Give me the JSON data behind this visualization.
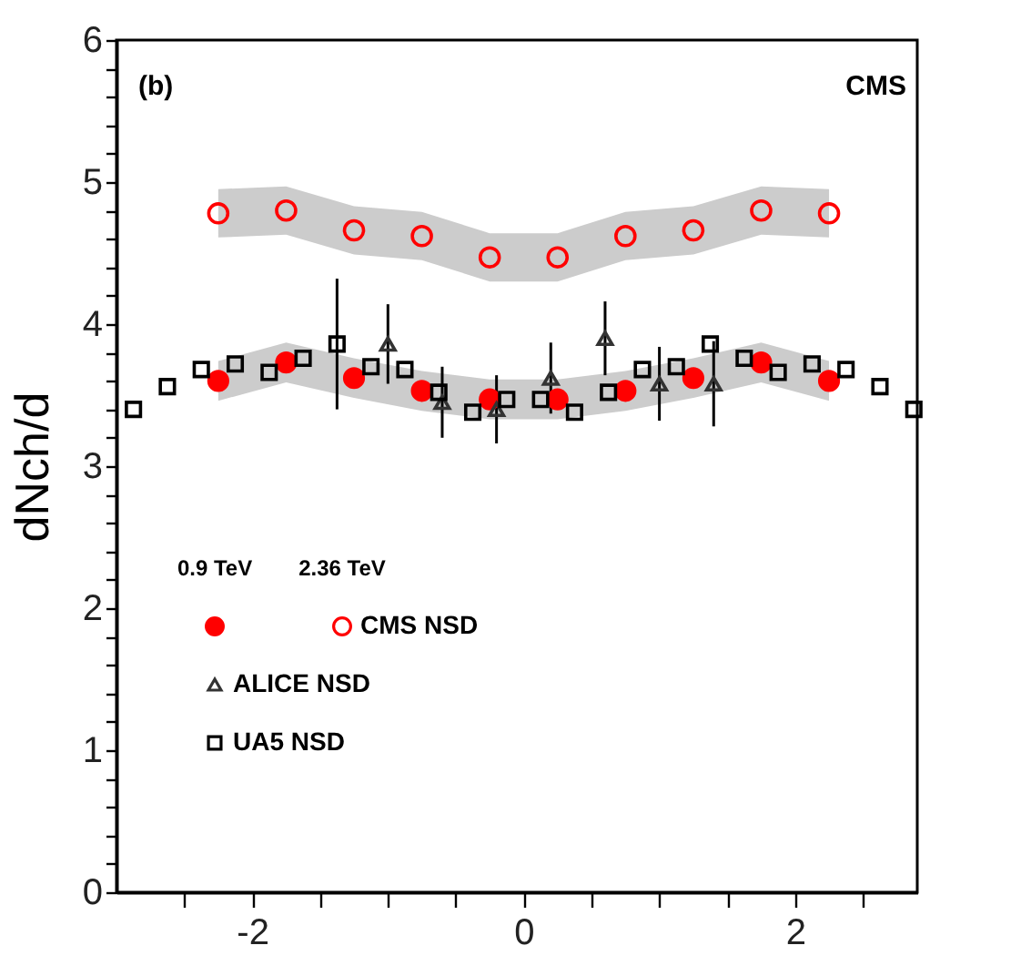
{
  "chart_data": {
    "type": "scatter",
    "ylabel": "dNch/d",
    "annotations": [
      "(b)",
      "CMS",
      "0.9 TeV",
      "2.36 TeV"
    ],
    "xlim": [
      -3,
      2.9
    ],
    "ylim": [
      0,
      6
    ],
    "xticks": [
      {
        "value": -2.5,
        "label": null
      },
      -2,
      {
        "value": -1.5,
        "label": null
      },
      {
        "value": -1,
        "label": null
      },
      {
        "value": -0.5,
        "label": null
      },
      0,
      {
        "value": 0.5,
        "label": null
      },
      {
        "value": 1,
        "label": null
      },
      {
        "value": 1.5,
        "label": null
      },
      2,
      {
        "value": 2.5,
        "label": null
      }
    ],
    "yticks": [
      0,
      {
        "value": 0.2,
        "label": null
      },
      {
        "value": 0.4,
        "label": null
      },
      {
        "value": 0.6,
        "label": null
      },
      {
        "value": 0.8,
        "label": null
      },
      1,
      {
        "value": 1.2,
        "label": null
      },
      {
        "value": 1.4,
        "label": null
      },
      {
        "value": 1.6,
        "label": null
      },
      {
        "value": 1.8,
        "label": null
      },
      2,
      {
        "value": 2.2,
        "label": null
      },
      {
        "value": 2.4,
        "label": null
      },
      {
        "value": 2.6,
        "label": null
      },
      {
        "value": 2.8,
        "label": null
      },
      3,
      {
        "value": 3.2,
        "label": null
      },
      {
        "value": 3.4,
        "label": null
      },
      {
        "value": 3.6,
        "label": null
      },
      {
        "value": 3.8,
        "label": null
      },
      4,
      {
        "value": 4.2,
        "label": null
      },
      {
        "value": 4.4,
        "label": null
      },
      {
        "value": 4.6,
        "label": null
      },
      {
        "value": 4.8,
        "label": null
      },
      5,
      {
        "value": 5.2,
        "label": null
      },
      {
        "value": 5.4,
        "label": null
      },
      {
        "value": 5.6,
        "label": null
      },
      {
        "value": 5.8,
        "label": null
      },
      6
    ],
    "legend": "bottom left",
    "series": [
      {
        "name": "CMS NSD",
        "color": "#ff0000",
        "marker": "circle",
        "x": [
          -2.25,
          -1.75,
          -1.25,
          -0.75,
          -0.25,
          0.25,
          0.75,
          1.25,
          1.75,
          2.25
        ],
        "values": [
          3.6,
          3.73,
          3.62,
          3.53,
          3.47,
          3.47,
          3.53,
          3.62,
          3.73,
          3.6
        ],
        "lower": [
          3.46,
          3.59,
          3.48,
          3.39,
          3.33,
          3.33,
          3.39,
          3.48,
          3.59,
          3.46
        ],
        "upper": [
          3.74,
          3.87,
          3.76,
          3.67,
          3.61,
          3.61,
          3.67,
          3.76,
          3.87,
          3.74
        ]
      },
      {
        "color": "#ff0000",
        "marker": "circle",
        "x": [
          -2.25,
          -1.75,
          -1.25,
          -0.75,
          -0.25,
          0.25,
          0.75,
          1.25,
          1.75,
          2.25
        ],
        "values": [
          4.78,
          4.8,
          4.66,
          4.62,
          4.47,
          4.47,
          4.62,
          4.66,
          4.8,
          4.78
        ],
        "lower": [
          4.61,
          4.63,
          4.49,
          4.45,
          4.3,
          4.3,
          4.45,
          4.49,
          4.63,
          4.61
        ],
        "upper": [
          4.95,
          4.97,
          4.83,
          4.79,
          4.64,
          4.64,
          4.79,
          4.83,
          4.97,
          4.95
        ]
      },
      {
        "name": "ALICE NSD",
        "color": "#333333",
        "marker": "triangle",
        "x": [
          -1.0,
          -0.6,
          -0.2,
          0.2,
          0.6,
          1.0,
          1.4
        ],
        "values": [
          3.86,
          3.45,
          3.4,
          3.62,
          3.9,
          3.58,
          3.58
        ],
        "errors": [
          0.28,
          0.25,
          0.24,
          0.25,
          0.26,
          0.26,
          0.3
        ]
      },
      {
        "name": "UA5 NSD",
        "color": "#000000",
        "marker": "square",
        "x": [
          -2.875,
          -2.625,
          -2.375,
          -2.125,
          -1.875,
          -1.625,
          -1.375,
          -1.125,
          -0.875,
          -0.625,
          -0.375,
          -0.125,
          0.125,
          0.375,
          0.625,
          0.875,
          1.125,
          1.375,
          1.625,
          1.875,
          2.125,
          2.375,
          2.625,
          2.875
        ],
        "values": [
          3.4,
          3.56,
          3.68,
          3.72,
          3.66,
          3.76,
          3.86,
          3.7,
          3.68,
          3.52,
          3.38,
          3.47,
          3.47,
          3.38,
          3.52,
          3.68,
          3.7,
          3.86,
          3.76,
          3.66,
          3.72,
          3.68,
          3.56,
          3.4
        ],
        "errors": [
          null,
          null,
          null,
          null,
          null,
          null,
          0.46,
          null,
          null,
          null,
          null,
          null,
          null,
          null,
          null,
          null,
          null,
          null,
          null,
          null,
          null,
          null,
          null,
          null
        ]
      }
    ]
  }
}
